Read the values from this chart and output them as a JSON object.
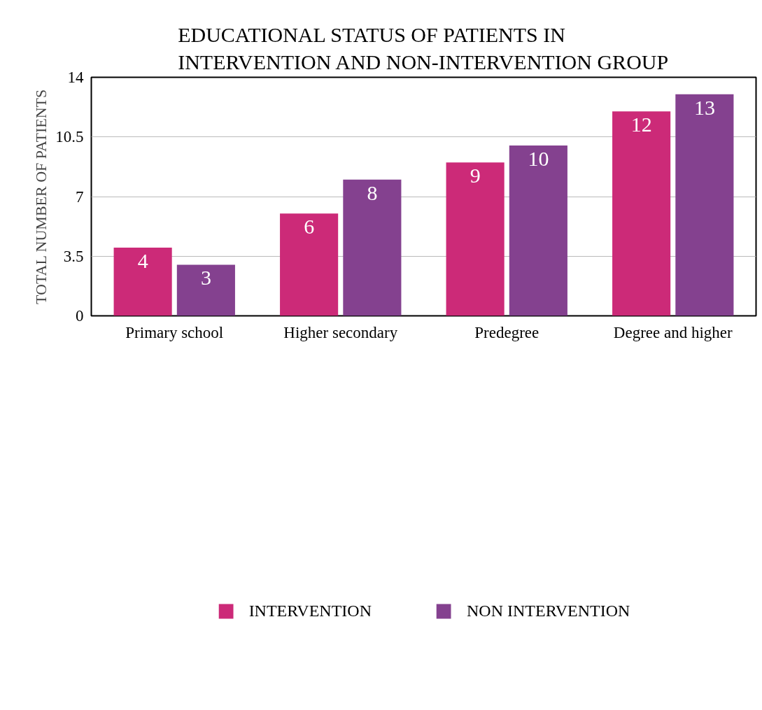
{
  "chart_data": {
    "type": "bar",
    "title": "EDUCATIONAL STATUS OF PATIENTS IN INTERVENTION AND NON-INTERVENTION GROUP",
    "ylabel": "TOTAL NUMBER OF PATIENTS",
    "categories": [
      "Primary school",
      "Higher secondary",
      "Predegree",
      "Degree and higher"
    ],
    "series": [
      {
        "name": "INTERVENTION",
        "color": "#cc2a78",
        "values": [
          4,
          6,
          9,
          12
        ]
      },
      {
        "name": "NON INTERVENTION",
        "color": "#84418f",
        "values": [
          3,
          8,
          10,
          13
        ]
      }
    ],
    "ylim": [
      0,
      14
    ],
    "yticks": [
      0,
      3.5,
      7,
      10.5,
      14
    ],
    "grid": "y",
    "legend": "bottom",
    "data_labels": true
  }
}
